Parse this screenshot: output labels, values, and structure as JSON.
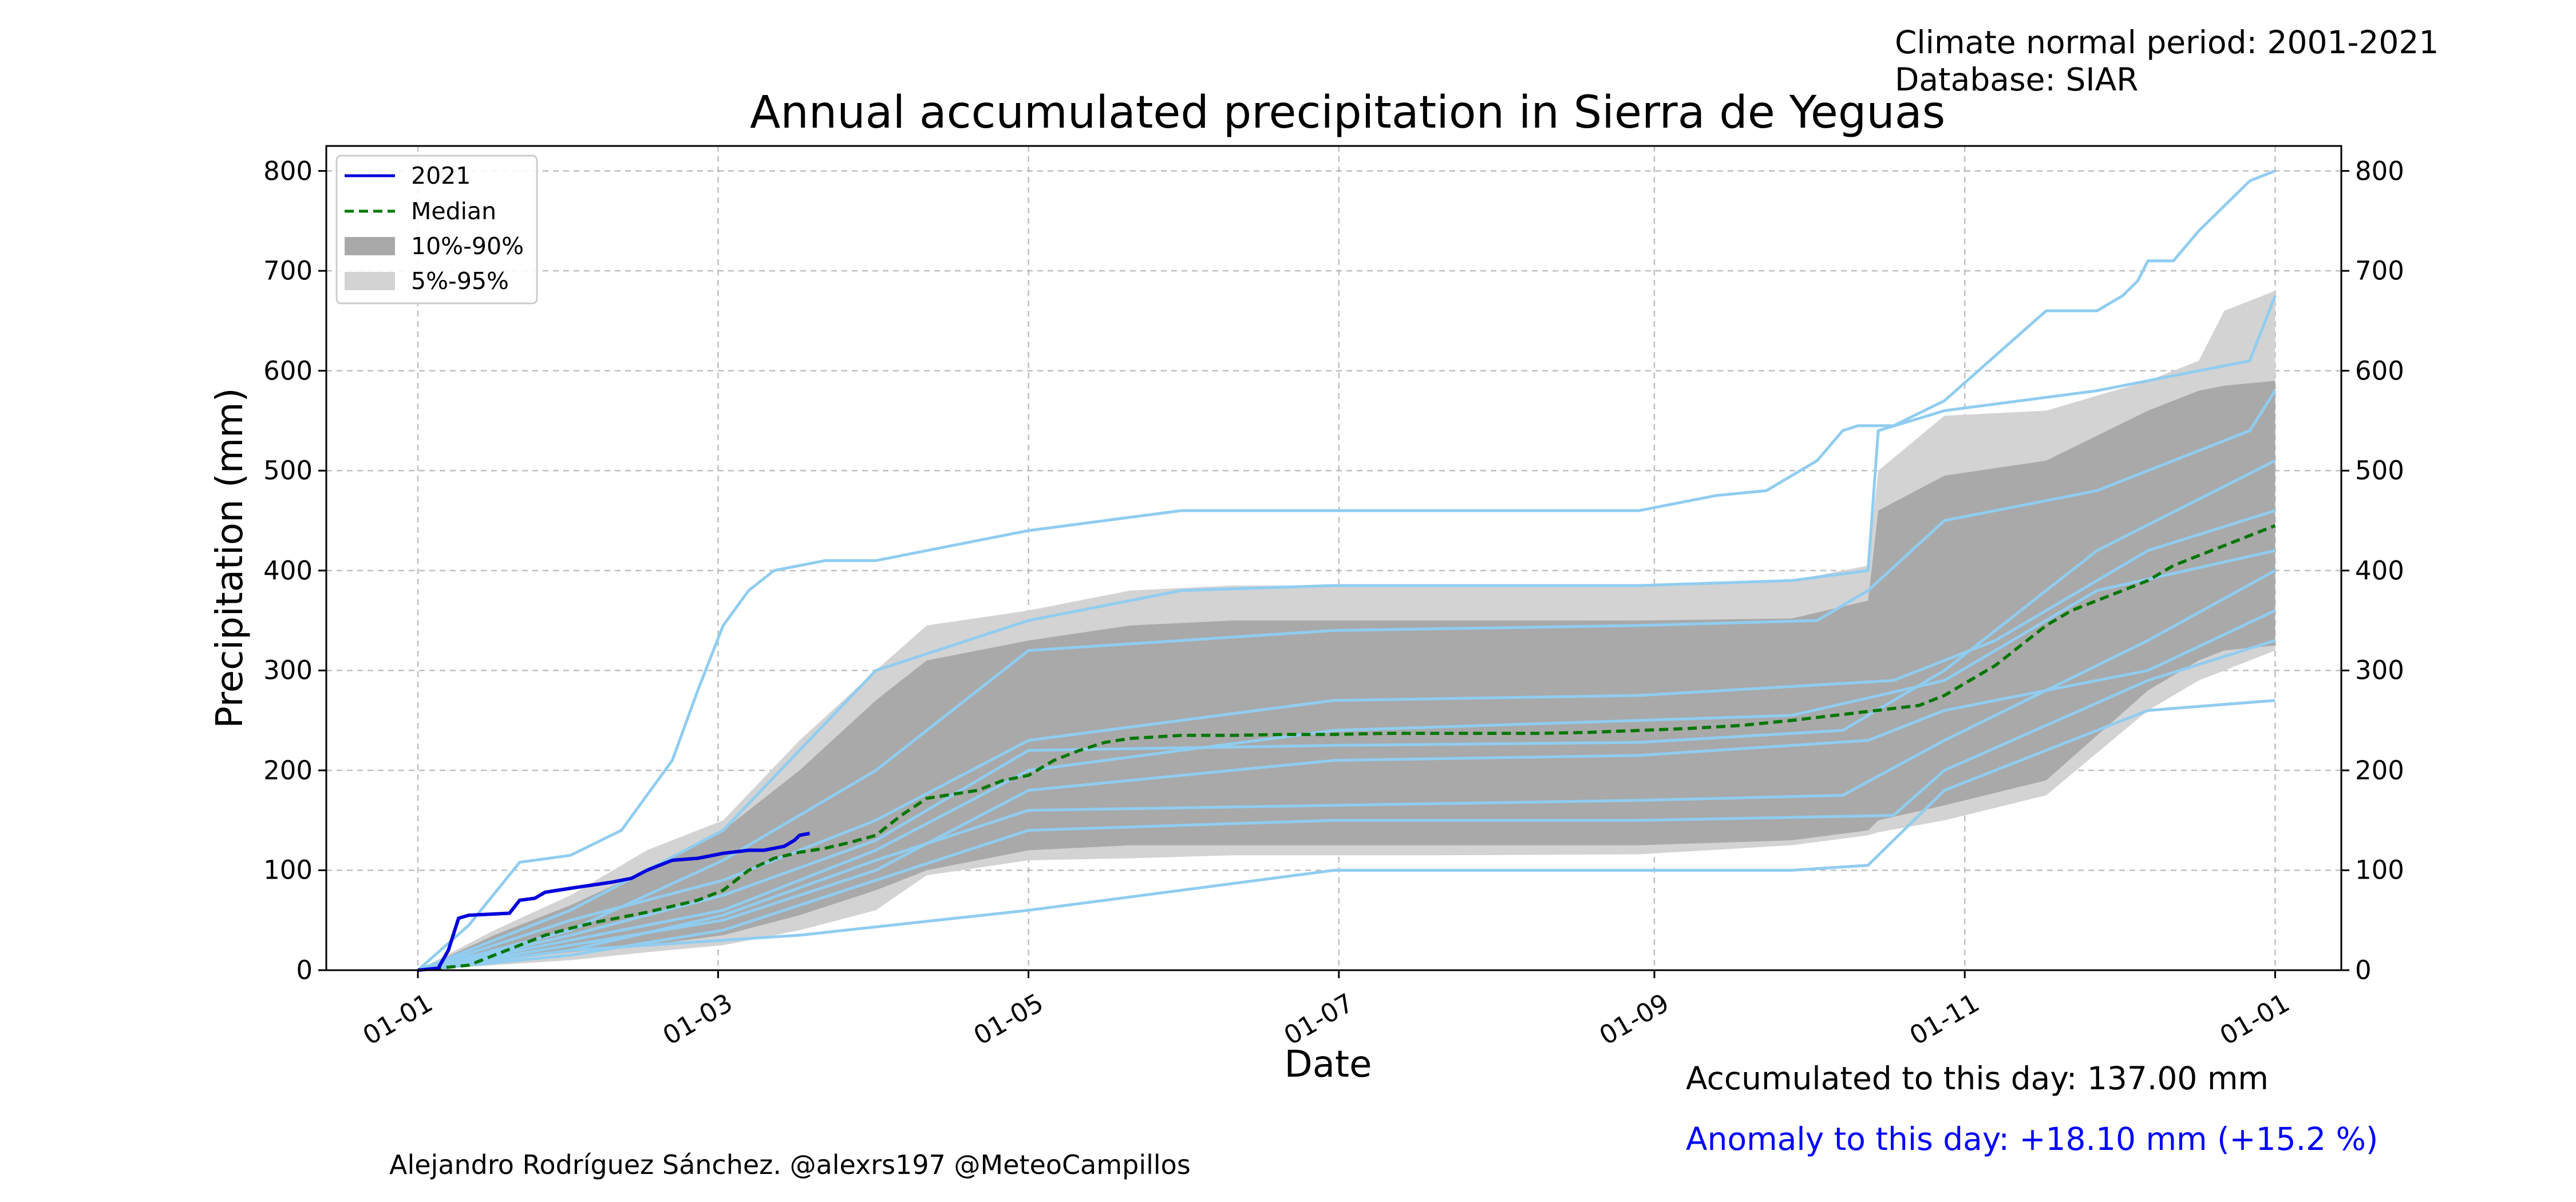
{
  "header": {
    "climate_normal": "Climate normal period: 2001-2021",
    "database": "Database: SIAR"
  },
  "footer": {
    "accumulated": "Accumulated to this day: 137.00 mm",
    "anomaly": "Anomaly to this day: +18.10 mm (+15.2 %)",
    "credit": "Alejandro Rodríguez Sánchez. @alexrs197 @MeteoCampillos"
  },
  "colors": {
    "current_year": "#0000dd",
    "median": "#007700",
    "band_10_90": "#a9a9a9",
    "band_5_95": "#d3d3d3",
    "historic_years": "#90cdf0",
    "anomaly_text": "#0000ff"
  },
  "chart_data": {
    "type": "line",
    "title": "Annual accumulated precipitation in Sierra de Yeguas",
    "xlabel": "Date",
    "ylabel": "Precipitation (mm)",
    "x_ticks": [
      "01-01",
      "01-03",
      "01-05",
      "01-07",
      "01-09",
      "01-11",
      "01-01"
    ],
    "x_tick_days": [
      0,
      59,
      120,
      181,
      243,
      304,
      365
    ],
    "xlim": [
      -18,
      378
    ],
    "ylim": [
      0,
      825
    ],
    "y_ticks": [
      0,
      100,
      200,
      300,
      400,
      500,
      600,
      700,
      800
    ],
    "grid": true,
    "legend": {
      "placement": "top-left",
      "entries": [
        "2021",
        "Median",
        "10%-90%",
        "5%-95%"
      ]
    },
    "series": [
      {
        "name": "2021",
        "x": [
          0,
          4,
          6,
          8,
          10,
          18,
          20,
          23,
          25,
          30,
          34,
          38,
          42,
          45,
          50,
          55,
          60,
          65,
          68,
          70,
          72,
          74,
          75,
          77
        ],
        "y": [
          0,
          2,
          20,
          52,
          55,
          57,
          70,
          72,
          78,
          82,
          85,
          88,
          92,
          100,
          110,
          112,
          117,
          120,
          120,
          122,
          124,
          130,
          135,
          137
        ]
      },
      {
        "name": "Median",
        "x": [
          0,
          10,
          15,
          20,
          25,
          30,
          35,
          40,
          45,
          50,
          55,
          60,
          65,
          70,
          75,
          80,
          85,
          90,
          95,
          100,
          110,
          115,
          120,
          125,
          130,
          135,
          140,
          150,
          160,
          170,
          180,
          190,
          200,
          210,
          220,
          230,
          240,
          250,
          260,
          270,
          280,
          290,
          295,
          300,
          305,
          310,
          315,
          320,
          325,
          330,
          335,
          340,
          345,
          350,
          355,
          360,
          365
        ],
        "y": [
          0,
          5,
          15,
          25,
          35,
          42,
          48,
          53,
          58,
          64,
          70,
          80,
          100,
          112,
          118,
          122,
          128,
          135,
          155,
          172,
          180,
          190,
          195,
          210,
          220,
          228,
          232,
          235,
          235,
          236,
          236,
          237,
          237,
          237,
          237,
          238,
          240,
          242,
          245,
          250,
          256,
          262,
          265,
          275,
          290,
          305,
          325,
          345,
          360,
          370,
          380,
          390,
          405,
          415,
          425,
          435,
          445
        ]
      }
    ],
    "bands": [
      {
        "name": "5%-95%",
        "x": [
          0,
          15,
          30,
          45,
          60,
          75,
          90,
          100,
          120,
          140,
          160,
          200,
          240,
          270,
          285,
          287,
          300,
          320,
          340,
          350,
          355,
          365
        ],
        "lower": [
          0,
          5,
          10,
          18,
          25,
          40,
          60,
          95,
          110,
          112,
          115,
          115,
          116,
          125,
          135,
          138,
          150,
          175,
          260,
          290,
          300,
          320
        ],
        "upper": [
          0,
          40,
          75,
          120,
          150,
          230,
          300,
          345,
          360,
          380,
          385,
          385,
          385,
          390,
          405,
          500,
          555,
          560,
          590,
          610,
          660,
          680
        ]
      },
      {
        "name": "10%-90%",
        "x": [
          0,
          15,
          30,
          45,
          60,
          75,
          90,
          100,
          120,
          140,
          160,
          200,
          240,
          270,
          285,
          287,
          300,
          320,
          340,
          350,
          355,
          365
        ],
        "lower": [
          0,
          10,
          18,
          25,
          35,
          55,
          80,
          100,
          120,
          125,
          125,
          125,
          125,
          130,
          140,
          150,
          165,
          190,
          280,
          310,
          320,
          325
        ],
        "upper": [
          0,
          35,
          65,
          100,
          140,
          200,
          270,
          310,
          330,
          345,
          350,
          350,
          350,
          352,
          370,
          460,
          495,
          510,
          560,
          580,
          585,
          590
        ]
      }
    ],
    "historic_years": [
      {
        "x": [
          0,
          10,
          20,
          30,
          40,
          50,
          55,
          60,
          65,
          70,
          80,
          90,
          100,
          120,
          150,
          180,
          210,
          240,
          255,
          265,
          275,
          280,
          283,
          290,
          300,
          320,
          330,
          335,
          338,
          340,
          345,
          350,
          360,
          365
        ],
        "y": [
          0,
          45,
          108,
          115,
          140,
          210,
          280,
          345,
          380,
          400,
          410,
          410,
          420,
          440,
          460,
          460,
          460,
          460,
          475,
          480,
          510,
          540,
          545,
          545,
          570,
          660,
          660,
          675,
          690,
          710,
          710,
          740,
          790,
          800
        ]
      },
      {
        "x": [
          0,
          30,
          60,
          90,
          120,
          150,
          180,
          210,
          240,
          270,
          285,
          287,
          300,
          330,
          360,
          365
        ],
        "y": [
          0,
          60,
          140,
          300,
          350,
          380,
          385,
          385,
          385,
          390,
          400,
          540,
          560,
          580,
          610,
          675
        ]
      },
      {
        "x": [
          0,
          30,
          60,
          90,
          120,
          180,
          240,
          275,
          285,
          300,
          330,
          360,
          365
        ],
        "y": [
          0,
          40,
          110,
          200,
          320,
          340,
          345,
          350,
          380,
          450,
          480,
          540,
          580
        ]
      },
      {
        "x": [
          0,
          30,
          60,
          75,
          120,
          180,
          240,
          270,
          285,
          300,
          340,
          365
        ],
        "y": [
          0,
          20,
          30,
          35,
          60,
          100,
          100,
          100,
          105,
          180,
          260,
          270
        ]
      },
      {
        "x": [
          0,
          30,
          60,
          90,
          120,
          180,
          240,
          270,
          300,
          330,
          365
        ],
        "y": [
          0,
          30,
          60,
          120,
          200,
          240,
          250,
          255,
          290,
          380,
          420
        ]
      },
      {
        "x": [
          0,
          30,
          60,
          90,
          120,
          180,
          240,
          285,
          300,
          340,
          365
        ],
        "y": [
          0,
          25,
          50,
          100,
          180,
          210,
          215,
          230,
          260,
          300,
          360
        ]
      },
      {
        "x": [
          0,
          30,
          60,
          90,
          120,
          180,
          240,
          290,
          310,
          340,
          365
        ],
        "y": [
          0,
          50,
          90,
          150,
          230,
          270,
          275,
          290,
          330,
          420,
          460
        ]
      },
      {
        "x": [
          0,
          30,
          60,
          90,
          120,
          180,
          240,
          290,
          300,
          340,
          365
        ],
        "y": [
          0,
          15,
          40,
          90,
          140,
          150,
          150,
          155,
          200,
          290,
          330
        ]
      },
      {
        "x": [
          0,
          30,
          60,
          90,
          120,
          180,
          240,
          280,
          300,
          330,
          365
        ],
        "y": [
          0,
          35,
          75,
          130,
          220,
          225,
          228,
          240,
          300,
          420,
          510
        ]
      },
      {
        "x": [
          0,
          30,
          60,
          90,
          120,
          180,
          240,
          280,
          300,
          340,
          365
        ],
        "y": [
          0,
          20,
          55,
          110,
          160,
          165,
          170,
          175,
          230,
          330,
          400
        ]
      }
    ]
  }
}
